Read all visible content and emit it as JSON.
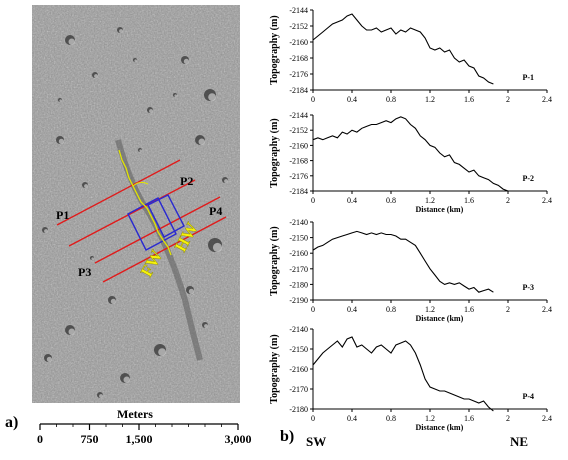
{
  "figure": {
    "panel_a_label": "a)",
    "panel_b_label": "b)",
    "scale_bar": {
      "title": "Meters",
      "ticks": [
        "0",
        "750",
        "1,500",
        "3,000"
      ],
      "tick_values": [
        0,
        750,
        1500,
        3000
      ]
    },
    "profile_labels": [
      "P1",
      "P2",
      "P3",
      "P4"
    ],
    "fault_labels": [
      "HW",
      "FW"
    ],
    "direction_left": "SW",
    "direction_right": "NE",
    "colors": {
      "profile_line": "#e01b1b",
      "fault_box": "#2a2ad0",
      "trace": "#e3e600",
      "fault_text": "#f5f20a"
    }
  },
  "chart_data": [
    {
      "type": "line",
      "label": "P-1",
      "xlabel": "",
      "ylabel": "Topography (m)",
      "xlim": [
        0,
        2.4
      ],
      "ylim": [
        -2184,
        -2144
      ],
      "xticks": [
        "0",
        "0.4",
        "0.8",
        "1.2",
        "1.6",
        "2",
        "2.4"
      ],
      "xtick_values": [
        0,
        0.4,
        0.8,
        1.2,
        1.6,
        2.0,
        2.4
      ],
      "yticks": [
        "-2144",
        "-2152",
        "-2160",
        "-2168",
        "-2176",
        "-2184"
      ],
      "ytick_values": [
        -2144,
        -2152,
        -2160,
        -2168,
        -2176,
        -2184
      ],
      "x": [
        0,
        0.05,
        0.1,
        0.15,
        0.2,
        0.25,
        0.3,
        0.35,
        0.4,
        0.45,
        0.5,
        0.55,
        0.6,
        0.65,
        0.7,
        0.75,
        0.8,
        0.85,
        0.9,
        0.95,
        1.0,
        1.05,
        1.1,
        1.15,
        1.2,
        1.25,
        1.3,
        1.35,
        1.4,
        1.45,
        1.5,
        1.55,
        1.6,
        1.65,
        1.7,
        1.75,
        1.8,
        1.85
      ],
      "y": [
        -2159,
        -2157,
        -2155,
        -2153,
        -2151,
        -2150,
        -2149,
        -2147,
        -2146,
        -2149,
        -2152,
        -2154,
        -2154,
        -2153,
        -2155,
        -2154,
        -2153,
        -2156,
        -2154,
        -2155,
        -2153,
        -2154,
        -2155,
        -2158,
        -2163,
        -2164,
        -2163,
        -2165,
        -2164,
        -2168,
        -2170,
        -2169,
        -2172,
        -2173,
        -2177,
        -2178,
        -2180,
        -2181
      ]
    },
    {
      "type": "line",
      "label": "P-2",
      "xlabel": "Distance (km)",
      "ylabel": "Topography (m)",
      "xlim": [
        0,
        2.4
      ],
      "ylim": [
        -2184,
        -2144
      ],
      "xticks": [
        "0",
        "0.4",
        "0.8",
        "1.2",
        "1.6",
        "2",
        "2.4"
      ],
      "xtick_values": [
        0,
        0.4,
        0.8,
        1.2,
        1.6,
        2.0,
        2.4
      ],
      "yticks": [
        "-2144",
        "-2152",
        "-2160",
        "-2168",
        "-2176",
        "-2184"
      ],
      "ytick_values": [
        -2144,
        -2152,
        -2160,
        -2168,
        -2176,
        -2184
      ],
      "x": [
        0,
        0.05,
        0.1,
        0.15,
        0.2,
        0.25,
        0.3,
        0.35,
        0.4,
        0.45,
        0.5,
        0.55,
        0.6,
        0.65,
        0.7,
        0.75,
        0.8,
        0.85,
        0.9,
        0.95,
        1.0,
        1.05,
        1.1,
        1.15,
        1.2,
        1.25,
        1.3,
        1.35,
        1.4,
        1.45,
        1.5,
        1.55,
        1.6,
        1.65,
        1.7,
        1.75,
        1.8,
        1.85,
        1.9,
        1.95,
        2.0
      ],
      "y": [
        -2157,
        -2156,
        -2157,
        -2156,
        -2155,
        -2156,
        -2153,
        -2154,
        -2152,
        -2153,
        -2151,
        -2150,
        -2149,
        -2149,
        -2148,
        -2147,
        -2148,
        -2146,
        -2145,
        -2146,
        -2149,
        -2151,
        -2155,
        -2157,
        -2160,
        -2161,
        -2164,
        -2166,
        -2165,
        -2169,
        -2170,
        -2172,
        -2174,
        -2173,
        -2176,
        -2177,
        -2178,
        -2180,
        -2181,
        -2183,
        -2184
      ]
    },
    {
      "type": "line",
      "label": "P-3",
      "xlabel": "Distance (km)",
      "ylabel": "Topography (m)",
      "xlim": [
        0,
        2.4
      ],
      "ylim": [
        -2190,
        -2140
      ],
      "xticks": [
        "0",
        "0.4",
        "0.8",
        "1.2",
        "1.6",
        "2",
        "2.4"
      ],
      "xtick_values": [
        0,
        0.4,
        0.8,
        1.2,
        1.6,
        2.0,
        2.4
      ],
      "yticks": [
        "-2140",
        "-2150",
        "-2160",
        "-2170",
        "-2180",
        "-2190"
      ],
      "ytick_values": [
        -2140,
        -2150,
        -2160,
        -2170,
        -2180,
        -2190
      ],
      "x": [
        0,
        0.05,
        0.1,
        0.15,
        0.2,
        0.25,
        0.3,
        0.35,
        0.4,
        0.45,
        0.5,
        0.55,
        0.6,
        0.65,
        0.7,
        0.75,
        0.8,
        0.85,
        0.9,
        0.95,
        1.0,
        1.05,
        1.1,
        1.15,
        1.2,
        1.25,
        1.3,
        1.35,
        1.4,
        1.45,
        1.5,
        1.55,
        1.6,
        1.65,
        1.7,
        1.75,
        1.8,
        1.85
      ],
      "y": [
        -2158,
        -2156,
        -2155,
        -2153,
        -2151,
        -2150,
        -2149,
        -2148,
        -2147,
        -2146,
        -2147,
        -2148,
        -2147,
        -2148,
        -2147,
        -2148,
        -2148,
        -2149,
        -2151,
        -2151,
        -2153,
        -2155,
        -2160,
        -2165,
        -2170,
        -2174,
        -2178,
        -2180,
        -2179,
        -2180,
        -2179,
        -2181,
        -2183,
        -2182,
        -2185,
        -2184,
        -2183,
        -2185
      ]
    },
    {
      "type": "line",
      "label": "P-4",
      "xlabel": "Distance (km)",
      "ylabel": "Topography (m)",
      "xlim": [
        0,
        2.4
      ],
      "ylim": [
        -2180,
        -2140
      ],
      "xticks": [
        "0",
        "0.4",
        "0.8",
        "1.2",
        "1.6",
        "2",
        "2.4"
      ],
      "xtick_values": [
        0,
        0.4,
        0.8,
        1.2,
        1.6,
        2.0,
        2.4
      ],
      "yticks": [
        "-2140",
        "-2150",
        "-2160",
        "-2170",
        "-2180"
      ],
      "ytick_values": [
        -2140,
        -2150,
        -2160,
        -2170,
        -2180
      ],
      "x": [
        0,
        0.05,
        0.1,
        0.15,
        0.2,
        0.25,
        0.3,
        0.35,
        0.4,
        0.45,
        0.5,
        0.55,
        0.6,
        0.65,
        0.7,
        0.75,
        0.8,
        0.85,
        0.9,
        0.95,
        1.0,
        1.05,
        1.1,
        1.15,
        1.2,
        1.25,
        1.3,
        1.35,
        1.4,
        1.45,
        1.5,
        1.55,
        1.6,
        1.65,
        1.7,
        1.75,
        1.8,
        1.85
      ],
      "y": [
        -2158,
        -2155,
        -2152,
        -2150,
        -2148,
        -2146,
        -2149,
        -2145,
        -2144,
        -2149,
        -2148,
        -2150,
        -2152,
        -2149,
        -2148,
        -2150,
        -2152,
        -2148,
        -2147,
        -2146,
        -2148,
        -2152,
        -2158,
        -2165,
        -2169,
        -2170,
        -2171,
        -2171,
        -2172,
        -2173,
        -2174,
        -2175,
        -2175,
        -2176,
        -2177,
        -2176,
        -2179,
        -2181
      ]
    }
  ]
}
